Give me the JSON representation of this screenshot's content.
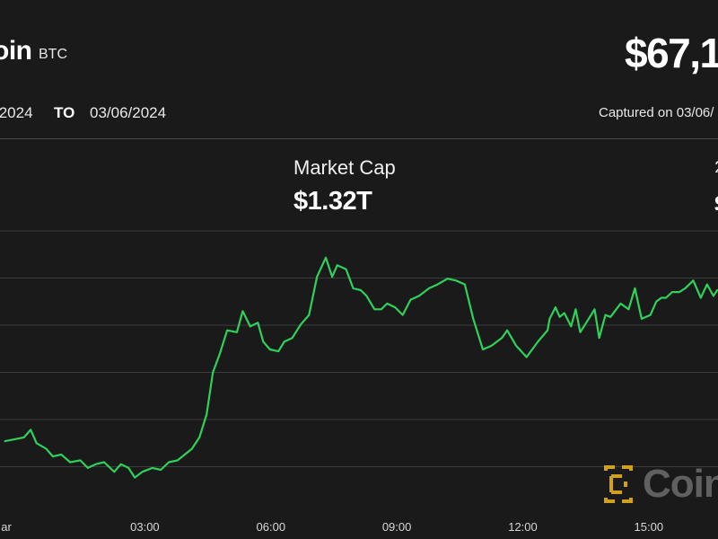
{
  "header": {
    "coin_name": "oin",
    "ticker": "BTC",
    "price": "$67,1",
    "range_from": "/2024",
    "range_to_label": "TO",
    "range_to": "03/06/2024",
    "captured": "Captured on 03/06/"
  },
  "stats": {
    "market_cap_label": "Market Cap",
    "market_cap_value": "$1.32T",
    "edge_label": "2",
    "edge_value": "$"
  },
  "watermark": {
    "text": "Coin",
    "logo_icon": "coindesk-logo-icon",
    "color": "#d4a017"
  },
  "colors": {
    "background": "#1a1a1a",
    "line": "#2ed15a",
    "grid": "#3c3c3c"
  },
  "chart_data": {
    "type": "line",
    "title": "",
    "xlabel": "",
    "ylabel": "",
    "grid": "horizontal",
    "x_ticks": [
      {
        "label": "ar",
        "hour": -0.3
      },
      {
        "label": "03:00",
        "hour": 3
      },
      {
        "label": "06:00",
        "hour": 6
      },
      {
        "label": "09:00",
        "hour": 9
      },
      {
        "label": "12:00",
        "hour": 12
      },
      {
        "label": "15:00",
        "hour": 15
      }
    ],
    "y_gridlines": 6,
    "series": [
      {
        "x": [
          -0.33,
          0.12,
          0.28,
          0.42,
          0.65,
          0.81,
          1.01,
          1.22,
          1.46,
          1.64,
          1.83,
          2.03,
          2.27,
          2.43,
          2.61,
          2.76,
          2.94,
          3.18,
          3.38,
          3.57,
          3.78,
          3.95,
          4.12,
          4.3,
          4.47,
          4.62,
          4.79,
          4.96,
          5.19,
          5.33,
          5.51,
          5.69,
          5.82,
          5.98,
          6.18,
          6.32,
          6.51,
          6.71,
          6.91,
          7.1,
          7.31,
          7.46,
          7.58,
          7.79,
          7.96,
          8.14,
          8.28,
          8.47,
          8.63,
          8.77,
          8.96,
          9.14,
          9.33,
          9.53,
          9.77,
          9.97,
          10.21,
          10.41,
          10.62,
          10.82,
          11.05,
          11.26,
          11.5,
          11.63,
          11.84,
          12.09,
          12.36,
          12.59,
          12.64,
          12.78,
          12.88,
          12.99,
          13.15,
          13.26,
          13.37,
          13.57,
          13.71,
          13.82,
          13.97,
          14.09,
          14.33,
          14.52,
          14.67,
          14.83,
          15.04,
          15.18,
          15.3,
          15.41,
          15.56,
          15.73,
          15.87,
          16.06,
          16.24,
          16.39,
          16.54,
          16.63
        ],
        "values": [
          67100,
          67200,
          67400,
          67050,
          66900,
          66700,
          66750,
          66550,
          66600,
          66400,
          66500,
          66550,
          66300,
          66500,
          66400,
          66150,
          66300,
          66400,
          66350,
          66550,
          66600,
          66750,
          66900,
          67200,
          67800,
          68900,
          69400,
          70000,
          69950,
          70500,
          70100,
          70200,
          69700,
          69500,
          69450,
          69700,
          69800,
          70150,
          70400,
          71400,
          71900,
          71400,
          71700,
          71600,
          71100,
          71050,
          70900,
          70550,
          70550,
          70700,
          70600,
          70400,
          70800,
          70900,
          71100,
          71200,
          71350,
          71300,
          71200,
          70300,
          69500,
          69600,
          69800,
          70000,
          69600,
          69300,
          69700,
          70000,
          70300,
          70600,
          70350,
          70450,
          70100,
          70550,
          69950,
          70300,
          70550,
          69800,
          70400,
          70350,
          70700,
          70550,
          71100,
          70300,
          70400,
          70750,
          70850,
          70850,
          71000,
          71000,
          71100,
          71300,
          70850,
          71200,
          70900,
          71050
        ],
        "ylim": [
          65200,
          72600
        ]
      }
    ],
    "xlim": [
      -0.45,
      16.65
    ]
  }
}
